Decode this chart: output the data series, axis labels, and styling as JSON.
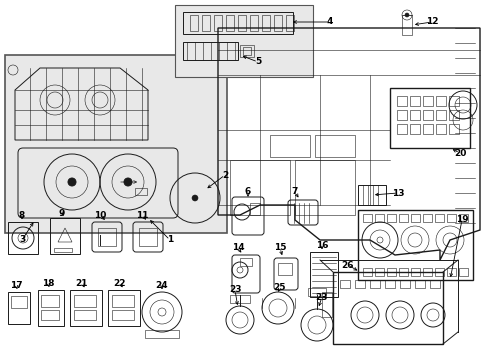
{
  "bg_color": "#f0f0f0",
  "line_color": "#1a1a1a",
  "label_color": "#000000",
  "fig_width": 4.89,
  "fig_height": 3.6,
  "dpi": 100,
  "gray_bg": "#d8d8d8"
}
